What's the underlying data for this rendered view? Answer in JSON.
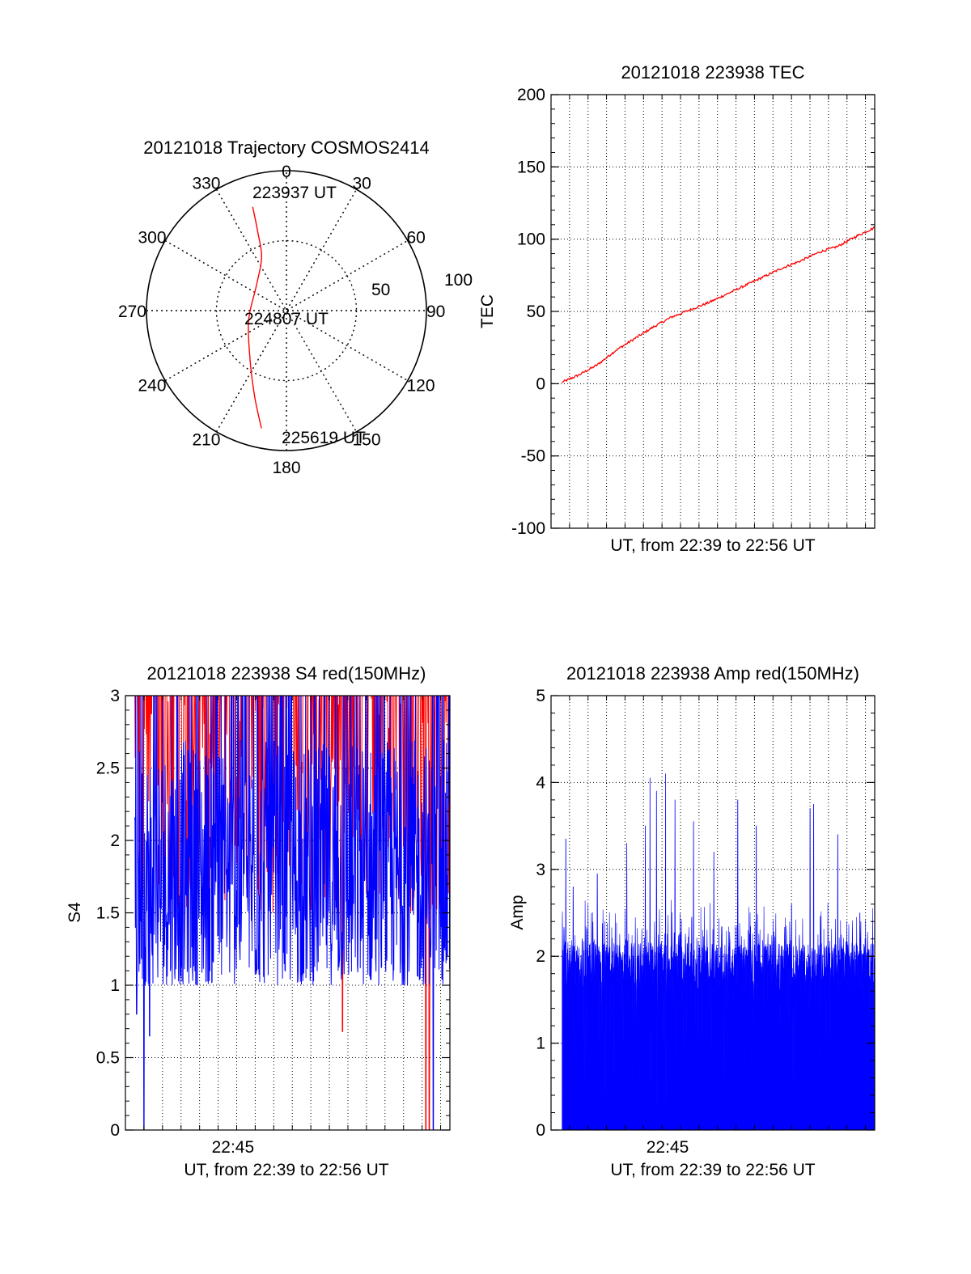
{
  "colors": {
    "red": "#ff0000",
    "blue": "#0000ff",
    "frame": "#000000",
    "grid": "#000000",
    "background": "#ffffff"
  },
  "chart_data": [
    {
      "type": "polar",
      "title": "20121018 Trajectory COSMOS2414",
      "azimuth_labels": [
        "0",
        "30",
        "60",
        "90",
        "120",
        "150",
        "180",
        "210",
        "240",
        "270",
        "300",
        "330"
      ],
      "radial_labels": [
        "50",
        "100"
      ],
      "grid": true,
      "annotations": {
        "start": "223937 UT",
        "middle": "224807 UT",
        "end": "225619 UT"
      },
      "series": [
        {
          "color": "red",
          "points": [
            {
              "az": 342,
              "zenith": 78
            },
            {
              "az": 340,
              "zenith": 60
            },
            {
              "az": 335,
              "zenith": 42
            },
            {
              "az": 310,
              "zenith": 28
            },
            {
              "az": 255,
              "zenith": 28
            },
            {
              "az": 215,
              "zenith": 45
            },
            {
              "az": 200,
              "zenith": 66
            },
            {
              "az": 192,
              "zenith": 86
            }
          ]
        }
      ]
    },
    {
      "type": "line",
      "title": "20121018 223938 TEC",
      "ylabel": "TEC",
      "xlabel": "UT, from 22:39 to 22:56 UT",
      "xlim": [
        0,
        17.5
      ],
      "ylim": [
        -100,
        200
      ],
      "yticks": [
        "-100",
        "-50",
        "0",
        "50",
        "100",
        "150",
        "200"
      ],
      "grid": true,
      "series": [
        {
          "color": "red",
          "x": [
            0.6,
            1.5,
            2.5,
            3.5,
            4.5,
            5.5,
            6.5,
            7.5,
            8.5,
            9.5,
            10.5,
            11.5,
            12.5,
            13.5,
            14.5,
            15.5,
            16.5,
            17.5
          ],
          "y": [
            1,
            6,
            13,
            23,
            31,
            39,
            46,
            51,
            56,
            62,
            68,
            74,
            80,
            85,
            91,
            95,
            102,
            108
          ]
        }
      ]
    },
    {
      "type": "line",
      "title": "20121018 223938 S4 red(150MHz)",
      "ylabel": "S4",
      "xlabel": "UT, from 22:39 to 22:56 UT",
      "xticks": [
        "22:45"
      ],
      "xlim": [
        0,
        17.5
      ],
      "ylim": [
        0,
        3
      ],
      "yticks": [
        "0",
        "0.5",
        "1",
        "1.5",
        "2",
        "2.5",
        "3"
      ],
      "grid": true,
      "series": [
        {
          "color": "red",
          "band": [
            1.5,
            3
          ],
          "min_dips": [
            {
              "x": 11.7,
              "y": 0.68
            },
            {
              "x": 16.2,
              "y": 0
            },
            {
              "x": 16.4,
              "y": 0
            }
          ]
        },
        {
          "color": "blue",
          "band": [
            1.0,
            3
          ],
          "min_dips": [
            {
              "x": 0.6,
              "y": 0.8
            },
            {
              "x": 1.0,
              "y": 0
            },
            {
              "x": 1.3,
              "y": 0.65
            },
            {
              "x": 16.6,
              "y": 0
            }
          ]
        }
      ]
    },
    {
      "type": "bar",
      "title": "20121018 223938 Amp red(150MHz)",
      "ylabel": "Amp",
      "xlabel": "UT, from 22:39 to 22:56 UT",
      "xticks": [
        "22:45"
      ],
      "xlim": [
        0,
        17.5
      ],
      "ylim": [
        0,
        5
      ],
      "yticks": [
        "0",
        "1",
        "2",
        "3",
        "4",
        "5"
      ],
      "grid": true,
      "series": [
        {
          "color": "blue",
          "base_level": 1.95,
          "peaks": [
            {
              "x": 0.8,
              "y": 3.35
            },
            {
              "x": 1.2,
              "y": 2.8
            },
            {
              "x": 2.5,
              "y": 2.95
            },
            {
              "x": 4.1,
              "y": 3.3
            },
            {
              "x": 5.1,
              "y": 3.5
            },
            {
              "x": 5.35,
              "y": 4.05
            },
            {
              "x": 5.7,
              "y": 3.9
            },
            {
              "x": 6.2,
              "y": 4.1
            },
            {
              "x": 6.7,
              "y": 3.8
            },
            {
              "x": 7.7,
              "y": 3.55
            },
            {
              "x": 8.8,
              "y": 3.2
            },
            {
              "x": 10.1,
              "y": 3.8
            },
            {
              "x": 11.1,
              "y": 3.5
            },
            {
              "x": 13.0,
              "y": 2.6
            },
            {
              "x": 14.0,
              "y": 3.7
            },
            {
              "x": 14.2,
              "y": 3.75
            },
            {
              "x": 15.5,
              "y": 3.4
            },
            {
              "x": 16.7,
              "y": 2.5
            }
          ]
        }
      ]
    }
  ]
}
